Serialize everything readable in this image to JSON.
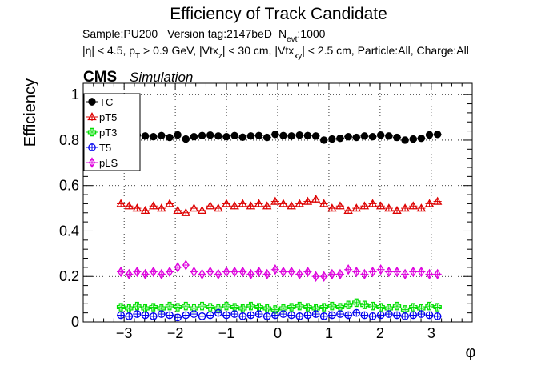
{
  "chart_data": {
    "type": "scatter",
    "title": "Efficiency of Track Candidate",
    "info_line1": {
      "sample": "Sample:PU200",
      "version": "Version tag:2147beD",
      "nevt_label": "N",
      "nevt_sub": "evt",
      "nevt_value": ":1000"
    },
    "info_line2": {
      "eta_cut": "|η| < 4.5, p",
      "pt_sub": "T",
      "pt_cut": " > 0.9 GeV, |Vtx",
      "z_sub": "z",
      "z_cut": "| < 30 cm, |Vtx",
      "xy_sub": "xy",
      "rest": "| < 2.5 cm, Particle:All, Charge:All"
    },
    "cms_label": "CMS",
    "simulation_label": "Simulation",
    "ylabel": "Efficiency",
    "xlabel": "φ",
    "xlim": [
      -3.8,
      3.8
    ],
    "ylim": [
      0,
      1.05
    ],
    "xticks": [
      "−3",
      "−2",
      "−1",
      "0",
      "1",
      "2",
      "3"
    ],
    "xtick_values": [
      -3,
      -2,
      -1,
      0,
      1,
      2,
      3
    ],
    "yticks": [
      "0",
      "0.2",
      "0.4",
      "0.6",
      "0.8",
      "1"
    ],
    "ytick_values": [
      0,
      0.2,
      0.4,
      0.6,
      0.8,
      1.0
    ],
    "grid": true,
    "legend_position": "top-left",
    "x": [
      -3.063,
      -2.904,
      -2.746,
      -2.587,
      -2.428,
      -2.27,
      -2.111,
      -1.953,
      -1.794,
      -1.635,
      -1.477,
      -1.318,
      -1.16,
      -1.001,
      -0.842,
      -0.684,
      -0.525,
      -0.367,
      -0.208,
      -0.049,
      0.109,
      0.268,
      0.426,
      0.585,
      0.744,
      0.902,
      1.061,
      1.219,
      1.378,
      1.537,
      1.695,
      1.854,
      2.012,
      2.171,
      2.33,
      2.488,
      2.647,
      2.805,
      2.964,
      3.122
    ],
    "series": [
      {
        "name": "TC",
        "color": "#000000",
        "marker": "filled-circle",
        "values": [
          0.815,
          0.812,
          0.822,
          0.818,
          0.815,
          0.82,
          0.812,
          0.823,
          0.805,
          0.815,
          0.82,
          0.822,
          0.818,
          0.815,
          0.82,
          0.813,
          0.818,
          0.82,
          0.812,
          0.825,
          0.82,
          0.818,
          0.822,
          0.82,
          0.818,
          0.8,
          0.805,
          0.808,
          0.815,
          0.812,
          0.818,
          0.815,
          0.822,
          0.818,
          0.812,
          0.8,
          0.805,
          0.808,
          0.823,
          0.825
        ]
      },
      {
        "name": "pT5",
        "color": "#dd0000",
        "marker": "open-triangle",
        "values": [
          0.52,
          0.51,
          0.5,
          0.49,
          0.51,
          0.5,
          0.52,
          0.49,
          0.48,
          0.5,
          0.49,
          0.51,
          0.5,
          0.52,
          0.51,
          0.52,
          0.51,
          0.52,
          0.51,
          0.53,
          0.52,
          0.51,
          0.52,
          0.53,
          0.54,
          0.52,
          0.5,
          0.51,
          0.49,
          0.5,
          0.51,
          0.52,
          0.51,
          0.5,
          0.49,
          0.5,
          0.51,
          0.5,
          0.52,
          0.53
        ]
      },
      {
        "name": "pT3",
        "color": "#00dd00",
        "marker": "open-cross",
        "values": [
          0.065,
          0.06,
          0.07,
          0.06,
          0.065,
          0.06,
          0.07,
          0.065,
          0.07,
          0.06,
          0.07,
          0.065,
          0.06,
          0.07,
          0.065,
          0.06,
          0.07,
          0.065,
          0.06,
          0.055,
          0.06,
          0.065,
          0.07,
          0.065,
          0.06,
          0.065,
          0.07,
          0.065,
          0.075,
          0.085,
          0.075,
          0.07,
          0.065,
          0.06,
          0.07,
          0.055,
          0.065,
          0.06,
          0.07,
          0.065
        ]
      },
      {
        "name": "T5",
        "color": "#0000ee",
        "marker": "open-circle",
        "values": [
          0.03,
          0.025,
          0.035,
          0.03,
          0.025,
          0.035,
          0.03,
          0.02,
          0.03,
          0.035,
          0.025,
          0.03,
          0.04,
          0.03,
          0.035,
          0.025,
          0.03,
          0.035,
          0.025,
          0.03,
          0.035,
          0.03,
          0.025,
          0.03,
          0.035,
          0.025,
          0.03,
          0.035,
          0.03,
          0.04,
          0.03,
          0.025,
          0.03,
          0.035,
          0.03,
          0.025,
          0.03,
          0.035,
          0.03,
          0.025
        ]
      },
      {
        "name": "pLS",
        "color": "#dd00dd",
        "marker": "open-diamond",
        "values": [
          0.22,
          0.21,
          0.22,
          0.21,
          0.22,
          0.21,
          0.22,
          0.24,
          0.25,
          0.22,
          0.21,
          0.22,
          0.21,
          0.22,
          0.22,
          0.22,
          0.21,
          0.22,
          0.21,
          0.23,
          0.22,
          0.22,
          0.21,
          0.22,
          0.2,
          0.2,
          0.21,
          0.21,
          0.23,
          0.22,
          0.21,
          0.22,
          0.23,
          0.22,
          0.22,
          0.21,
          0.22,
          0.22,
          0.21,
          0.21
        ]
      }
    ]
  }
}
